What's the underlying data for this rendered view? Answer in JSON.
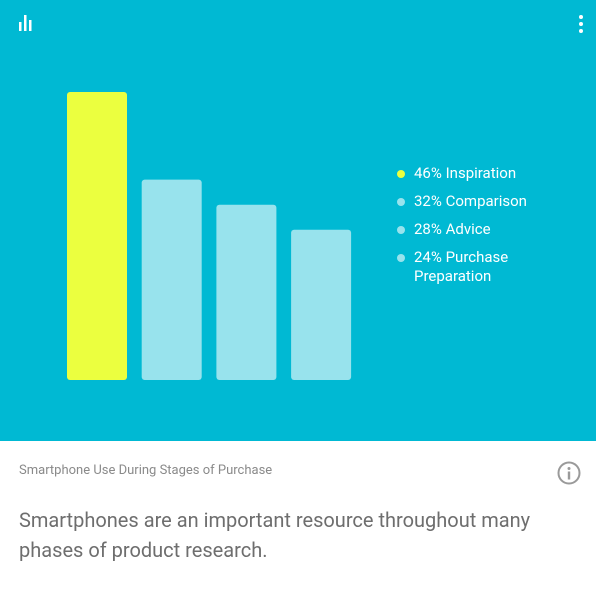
{
  "chart_data": {
    "type": "bar",
    "title": "Smartphone Use During Stages of Purchase",
    "subtitle": "Smartphones are an important resource throughout many phases of product research.",
    "categories": [
      "Inspiration",
      "Comparison",
      "Advice",
      "Purchase Preparation"
    ],
    "values": [
      46,
      32,
      28,
      24
    ],
    "value_labels": [
      "46%",
      "32%",
      "28%",
      "24%"
    ],
    "colors": [
      "#ebff3f",
      "#98e3ed",
      "#98e3ed",
      "#98e3ed"
    ]
  }
}
